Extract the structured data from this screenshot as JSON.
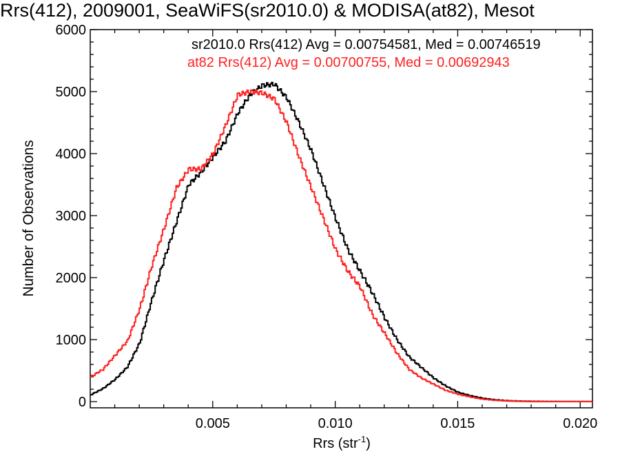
{
  "chart_data": {
    "type": "line",
    "title": "Rrs(412), 2009001, SeaWiFS(sr2010.0) & MODISA(at82), Mesot",
    "xlabel": "Rrs (str",
    "xlabel_sup": "-1",
    "xlabel_end": ")",
    "ylabel": "Number of Observations",
    "xlim": [
      0.0,
      0.0205
    ],
    "ylim": [
      -100,
      6000
    ],
    "xticks": [
      0.005,
      0.01,
      0.015,
      0.02
    ],
    "xtick_labels": [
      "0.005",
      "0.010",
      "0.015",
      "0.020"
    ],
    "yticks": [
      0,
      1000,
      2000,
      3000,
      4000,
      5000,
      6000
    ],
    "ytick_labels": [
      "0",
      "1000",
      "2000",
      "3000",
      "4000",
      "5000",
      "6000"
    ],
    "grid": false,
    "legend_position": "top-right",
    "colors": {
      "sr2010": "#000000",
      "at82": "#ff2020",
      "axes": "#000000"
    },
    "series": [
      {
        "key": "sr2010",
        "legend": "sr2010.0 Rrs(412) Avg = 0.00754581, Med = 0.00746519",
        "color": "#000000",
        "x": [
          0.0,
          0.0005,
          0.001,
          0.0015,
          0.002,
          0.0025,
          0.003,
          0.0035,
          0.004,
          0.0045,
          0.005,
          0.0055,
          0.006,
          0.0065,
          0.007,
          0.0075,
          0.008,
          0.0085,
          0.009,
          0.0095,
          0.01,
          0.0105,
          0.011,
          0.0115,
          0.012,
          0.0125,
          0.013,
          0.0135,
          0.014,
          0.0145,
          0.015,
          0.0155,
          0.016,
          0.0165,
          0.017,
          0.0175,
          0.018,
          0.0185,
          0.019,
          0.0195,
          0.02,
          0.0205
        ],
        "y": [
          110,
          210,
          360,
          560,
          950,
          1650,
          2300,
          2900,
          3500,
          3700,
          3950,
          4200,
          4650,
          4950,
          5100,
          5120,
          4900,
          4500,
          4050,
          3500,
          2950,
          2450,
          2100,
          1750,
          1350,
          1000,
          720,
          550,
          380,
          250,
          150,
          95,
          55,
          30,
          15,
          8,
          4,
          2,
          1,
          0,
          0,
          0
        ]
      },
      {
        "key": "at82",
        "legend": "at82 Rrs(412) Avg = 0.00700755, Med = 0.00692943",
        "color": "#ff2020",
        "x": [
          0.0,
          0.0005,
          0.001,
          0.0015,
          0.002,
          0.0025,
          0.003,
          0.0035,
          0.004,
          0.0045,
          0.005,
          0.0055,
          0.006,
          0.0065,
          0.007,
          0.0075,
          0.008,
          0.0085,
          0.009,
          0.0095,
          0.01,
          0.0105,
          0.011,
          0.0115,
          0.012,
          0.0125,
          0.013,
          0.0135,
          0.014,
          0.0145,
          0.015,
          0.0155,
          0.016,
          0.0165,
          0.017,
          0.0175,
          0.018,
          0.0185,
          0.019,
          0.0195,
          0.02,
          0.0205
        ],
        "y": [
          400,
          520,
          750,
          980,
          1500,
          2200,
          2800,
          3450,
          3750,
          3750,
          4000,
          4450,
          4950,
          5000,
          4980,
          4880,
          4500,
          3950,
          3450,
          2950,
          2450,
          2100,
          1850,
          1400,
          1100,
          780,
          520,
          380,
          280,
          180,
          120,
          75,
          40,
          22,
          12,
          6,
          3,
          1,
          0,
          0,
          0,
          0
        ]
      }
    ]
  }
}
